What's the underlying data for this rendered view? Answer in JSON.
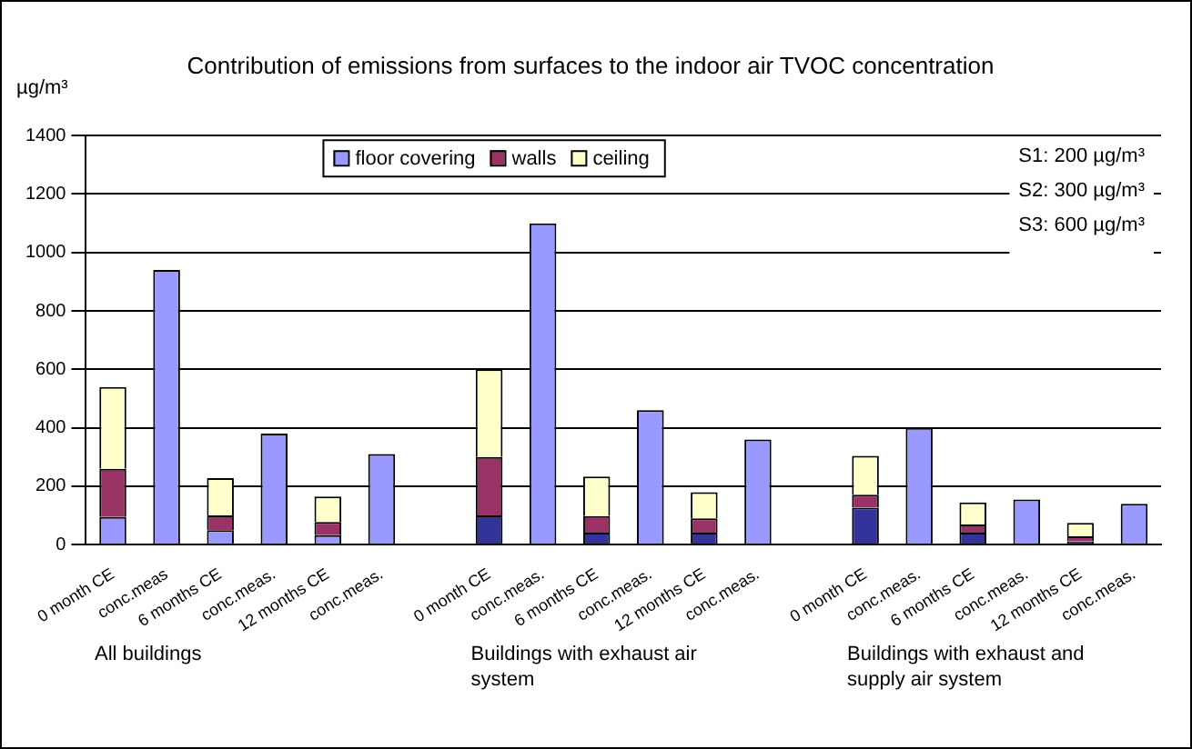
{
  "chart_data": {
    "type": "bar",
    "title": "Contribution of emissions from surfaces to the indoor air TVOC concentration",
    "ylabel": "µg/m³",
    "categories": [
      "0 month CE",
      "conc.meas",
      "6 months CE",
      "conc.meas.",
      "12 months CE",
      "conc.meas.",
      null,
      "0 month CE",
      "conc.meas.",
      "6 months CE",
      "conc.meas.",
      "12 months CE",
      "conc.meas.",
      null,
      "0 month CE",
      "conc.meas.",
      "6 months CE",
      "conc.meas.",
      "12 months CE",
      "conc.meas."
    ],
    "stacked": true,
    "series": [
      {
        "name": "floor covering",
        "color": "#9999ff",
        "colors": [
          "#9999ff",
          "#9999ff",
          "#9999ff",
          "#9999ff",
          "#9999ff",
          "#9999ff",
          "#9999ff",
          "#333399",
          "#9999ff",
          "#333399",
          "#9999ff",
          "#333399",
          "#9999ff",
          "#9999ff",
          "#333399",
          "#9999ff",
          "#333399",
          "#9999ff",
          "#333399",
          "#9999ff"
        ],
        "values": [
          95,
          940,
          50,
          380,
          33,
          310,
          null,
          100,
          1100,
          41,
          460,
          41,
          360,
          null,
          127,
          400,
          41,
          155,
          12,
          140
        ]
      },
      {
        "name": "walls",
        "color": "#993366",
        "values": [
          165,
          null,
          50,
          null,
          45,
          null,
          null,
          200,
          null,
          57,
          null,
          49,
          null,
          null,
          44,
          null,
          28,
          null,
          17,
          null
        ]
      },
      {
        "name": "ceiling",
        "color": "#ffffcc",
        "values": [
          280,
          null,
          128,
          null,
          87,
          null,
          null,
          300,
          null,
          135,
          null,
          90,
          null,
          null,
          133,
          null,
          76,
          null,
          46,
          null
        ]
      }
    ],
    "ylim": [
      0,
      1400
    ],
    "yticks": [
      0,
      200,
      400,
      600,
      800,
      1000,
      1200,
      1400
    ],
    "grid": "y",
    "legend": "top",
    "annotations": [
      "S1: 200 µg/m³",
      "S2: 300 µg/m³",
      "S3: 600 µg/m³",
      "All buildings",
      "Buildings with exhaust air system",
      "Buildings with exhaust and supply air system"
    ]
  }
}
